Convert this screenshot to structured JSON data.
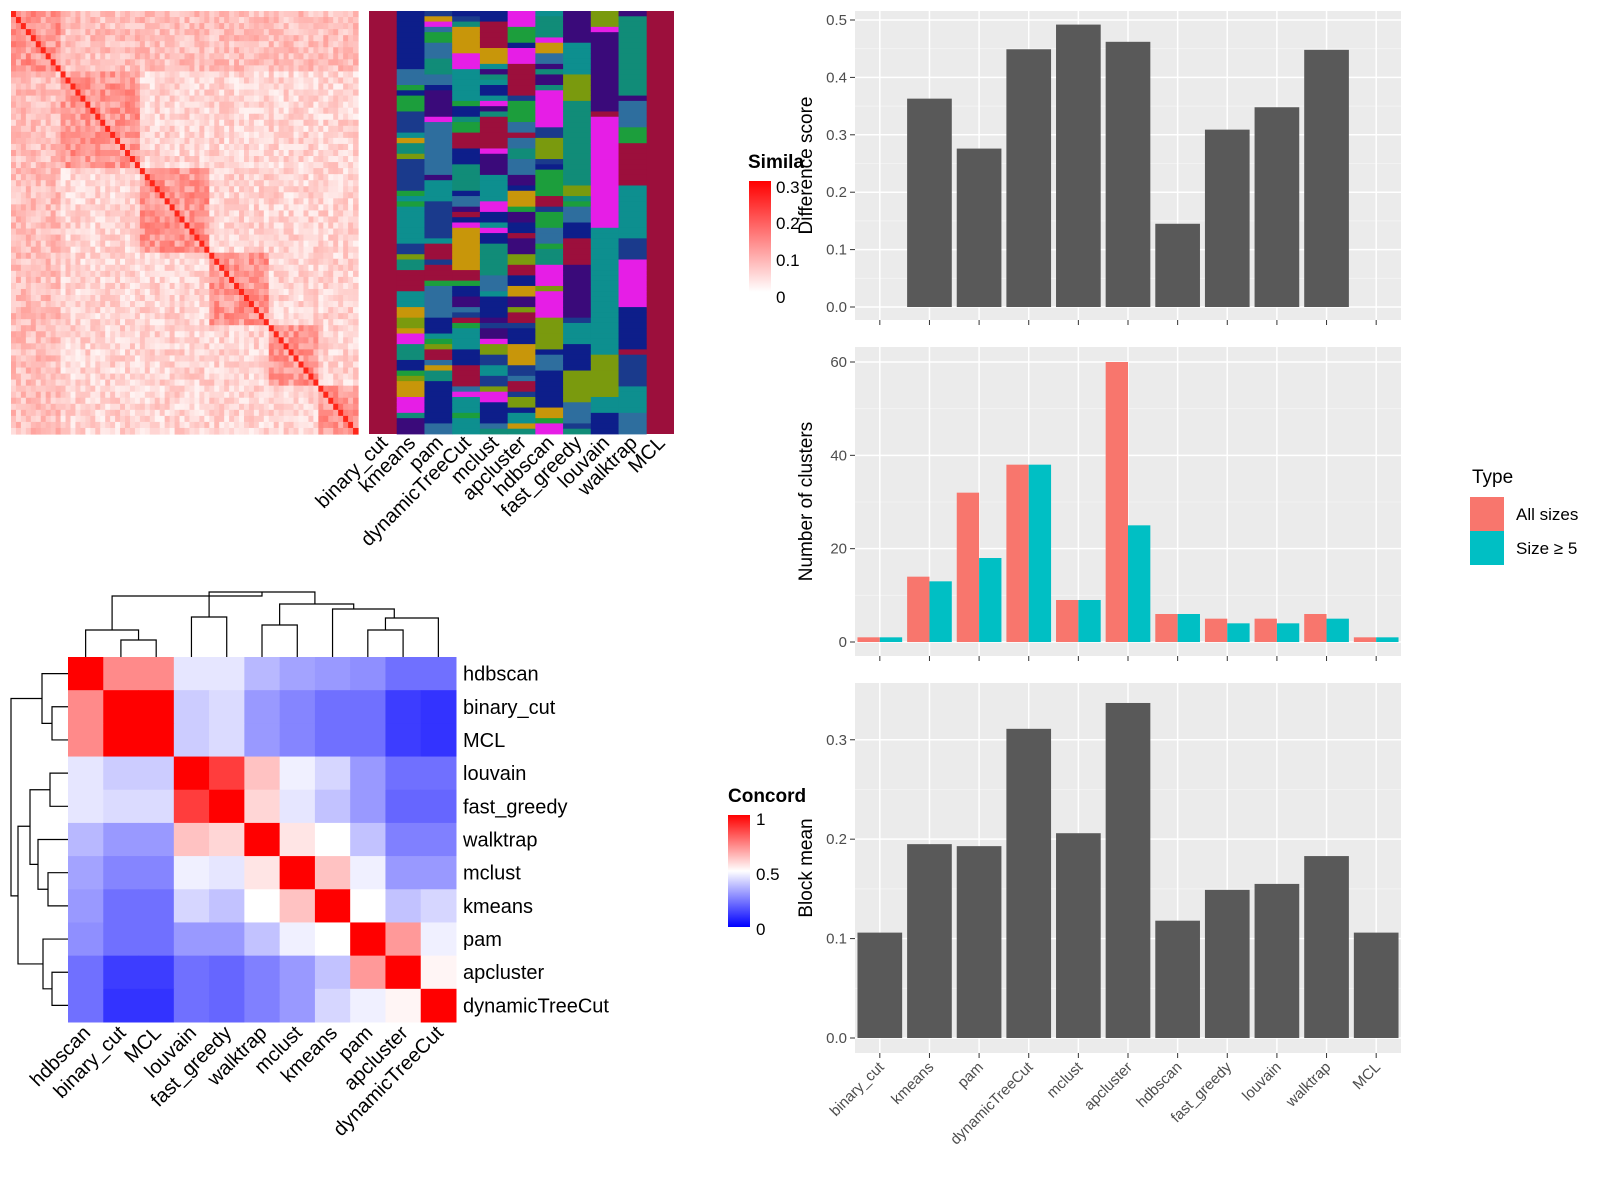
{
  "colors": {
    "bar_gray": "#595959",
    "panel_bg": "#ebebeb",
    "grid": "#ffffff",
    "all_sizes": "#f8766d",
    "size5": "#00bfc4",
    "sim_high": "#ff0000",
    "conc_high": "#ff0000",
    "conc_mid": "#ffffff",
    "conc_low": "#0000ff"
  },
  "similarity_legend": {
    "title": "Simila",
    "ticks": [
      "0.3",
      "0.2",
      "0.1",
      "0"
    ]
  },
  "membership_columns": [
    "binary_cut",
    "kmeans",
    "pam",
    "dynamicTreeCut",
    "mclust",
    "apcluster",
    "hdbscan",
    "fast_greedy",
    "louvain",
    "walktrap",
    "MCL"
  ],
  "concordance_legend": {
    "title": "Concord",
    "ticks": [
      "1",
      "0.5",
      "0"
    ]
  },
  "type_legend": {
    "title": "Type",
    "items": [
      "All sizes",
      "Size ≥ 5"
    ]
  },
  "chart_data": [
    {
      "type": "heatmap",
      "id": "concordance",
      "title": "",
      "row_labels": [
        "hdbscan",
        "binary_cut",
        "MCL",
        "louvain",
        "fast_greedy",
        "walktrap",
        "mclust",
        "kmeans",
        "pam",
        "apcluster",
        "dynamicTreeCut"
      ],
      "col_labels": [
        "hdbscan",
        "binary_cut",
        "MCL",
        "louvain",
        "fast_greedy",
        "walktrap",
        "mclust",
        "kmeans",
        "pam",
        "apcluster",
        "dynamicTreeCut"
      ],
      "values": [
        [
          1.0,
          0.73,
          0.73,
          0.45,
          0.45,
          0.36,
          0.32,
          0.3,
          0.28,
          0.22,
          0.22
        ],
        [
          0.73,
          1.0,
          1.0,
          0.4,
          0.43,
          0.3,
          0.26,
          0.22,
          0.22,
          0.12,
          0.1
        ],
        [
          0.73,
          1.0,
          1.0,
          0.4,
          0.43,
          0.3,
          0.26,
          0.22,
          0.22,
          0.12,
          0.1
        ],
        [
          0.45,
          0.4,
          0.4,
          1.0,
          0.88,
          0.62,
          0.47,
          0.42,
          0.3,
          0.22,
          0.22
        ],
        [
          0.45,
          0.43,
          0.43,
          0.88,
          1.0,
          0.58,
          0.45,
          0.38,
          0.3,
          0.2,
          0.2
        ],
        [
          0.36,
          0.3,
          0.3,
          0.62,
          0.58,
          1.0,
          0.55,
          0.5,
          0.38,
          0.25,
          0.25
        ],
        [
          0.32,
          0.26,
          0.26,
          0.47,
          0.45,
          0.55,
          1.0,
          0.62,
          0.47,
          0.3,
          0.3
        ],
        [
          0.3,
          0.22,
          0.22,
          0.42,
          0.38,
          0.5,
          0.62,
          1.0,
          0.5,
          0.38,
          0.42
        ],
        [
          0.28,
          0.22,
          0.22,
          0.3,
          0.3,
          0.38,
          0.47,
          0.5,
          1.0,
          0.7,
          0.47
        ],
        [
          0.22,
          0.12,
          0.12,
          0.22,
          0.2,
          0.25,
          0.3,
          0.38,
          0.7,
          1.0,
          0.52
        ],
        [
          0.22,
          0.1,
          0.1,
          0.22,
          0.2,
          0.25,
          0.3,
          0.42,
          0.47,
          0.52,
          1.0
        ]
      ],
      "color_scale": {
        "name": "Concord",
        "min": 0,
        "mid": 0.5,
        "max": 1
      }
    },
    {
      "type": "bar",
      "id": "difference_score",
      "title": "",
      "xlabel": "",
      "ylabel": "Difference score",
      "categories": [
        "binary_cut",
        "kmeans",
        "pam",
        "dynamicTreeCut",
        "mclust",
        "apcluster",
        "hdbscan",
        "fast_greedy",
        "louvain",
        "walktrap",
        "MCL"
      ],
      "values": [
        0,
        0.363,
        0.276,
        0.449,
        0.492,
        0.462,
        0.145,
        0.309,
        0.348,
        0.448,
        0
      ],
      "ylim": [
        0,
        0.5
      ],
      "yticks": [
        "0.0",
        "0.1",
        "0.2",
        "0.3",
        "0.4",
        "0.5"
      ],
      "grid": true
    },
    {
      "type": "bar",
      "id": "number_of_clusters",
      "title": "",
      "xlabel": "",
      "ylabel": "Number of clusters",
      "categories": [
        "binary_cut",
        "kmeans",
        "pam",
        "dynamicTreeCut",
        "mclust",
        "apcluster",
        "hdbscan",
        "fast_greedy",
        "louvain",
        "walktrap",
        "MCL"
      ],
      "series": [
        {
          "name": "All sizes",
          "values": [
            1,
            14,
            32,
            38,
            9,
            60,
            6,
            5,
            5,
            6,
            1
          ]
        },
        {
          "name": "Size ≥ 5",
          "values": [
            1,
            13,
            18,
            38,
            9,
            25,
            6,
            4,
            4,
            5,
            1
          ]
        }
      ],
      "ylim": [
        0,
        60
      ],
      "yticks": [
        "0",
        "20",
        "40",
        "60"
      ],
      "legend": "right",
      "grid": true
    },
    {
      "type": "bar",
      "id": "block_mean",
      "title": "",
      "xlabel": "",
      "ylabel": "Block mean",
      "categories": [
        "binary_cut",
        "kmeans",
        "pam",
        "dynamicTreeCut",
        "mclust",
        "apcluster",
        "hdbscan",
        "fast_greedy",
        "louvain",
        "walktrap",
        "MCL"
      ],
      "values": [
        0.106,
        0.195,
        0.193,
        0.311,
        0.206,
        0.337,
        0.118,
        0.149,
        0.155,
        0.183,
        0.106
      ],
      "ylim": [
        0,
        0.34
      ],
      "yticks": [
        "0.0",
        "0.1",
        "0.2",
        "0.3"
      ],
      "grid": true
    }
  ]
}
